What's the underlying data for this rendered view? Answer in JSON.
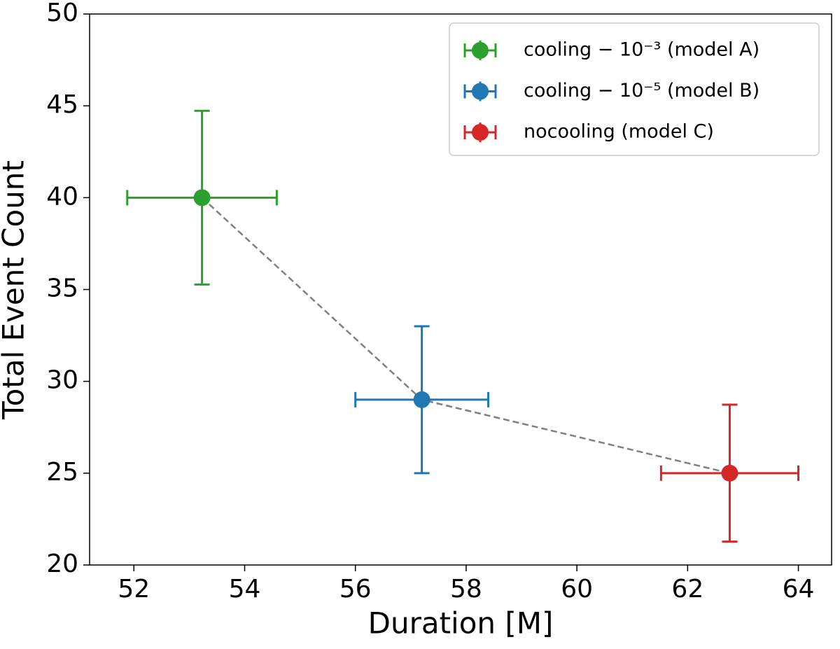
{
  "chart_data": {
    "type": "scatter",
    "x_label": "Duration [M]",
    "y_label": "Total Event Count",
    "xlim": [
      51.2,
      64.6
    ],
    "ylim": [
      20,
      50
    ],
    "xticks": [
      52,
      54,
      56,
      58,
      60,
      62,
      64
    ],
    "yticks": [
      20,
      25,
      30,
      35,
      40,
      45,
      50
    ],
    "legend": "upper right",
    "connector": {
      "color": "#808080",
      "style": "dashed"
    },
    "series": [
      {
        "name": "cooling − 10⁻³ (model A)",
        "color": "#2ca02c",
        "x": [
          53.23
        ],
        "y": [
          40
        ],
        "xerr": [
          1.35
        ],
        "yerr": [
          4.73
        ]
      },
      {
        "name": "cooling − 10⁻⁵ (model B)",
        "color": "#1f77b4",
        "x": [
          57.2
        ],
        "y": [
          29
        ],
        "xerr": [
          1.2
        ],
        "yerr": [
          4.0
        ]
      },
      {
        "name": "nocooling (model C)",
        "color": "#d62728",
        "x": [
          62.76
        ],
        "y": [
          25
        ],
        "xerr": [
          1.24
        ],
        "yerr": [
          3.73
        ]
      }
    ]
  }
}
